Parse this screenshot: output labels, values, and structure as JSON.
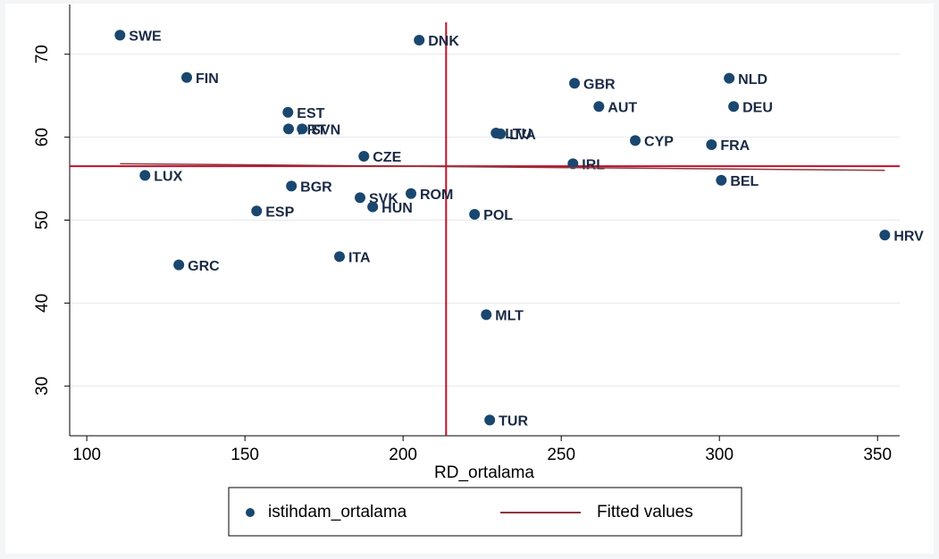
{
  "chart_data": {
    "type": "scatter",
    "x_label": "RD_ortalama",
    "xlim": [
      94.6,
      357
    ],
    "ylim": [
      24,
      76
    ],
    "xticks": [
      100,
      150,
      200,
      250,
      300,
      350
    ],
    "yticks": [
      30,
      40,
      50,
      60,
      70
    ],
    "grid": true,
    "xline": 213.6,
    "yline": 56.5,
    "refline_color": "#c0102a",
    "series": [
      {
        "name": "istihdam_ortalama",
        "color": "#1a476f",
        "labels": [
          "SWE",
          "DNK",
          "FIN",
          "GBR",
          "NLD",
          "AUT",
          "DEU",
          "EST",
          "PRT",
          "SVN",
          "LTU",
          "LVA",
          "CYP",
          "FRA",
          "CZE",
          "IRL",
          "LUX",
          "BEL",
          "BGR",
          "SVK",
          "ROM",
          "HUN",
          "ESP",
          "POL",
          "HRV",
          "GRC",
          "ITA",
          "MLT",
          "TUR"
        ],
        "x": [
          110.5,
          205.1,
          131.6,
          254.2,
          303.1,
          261.9,
          304.5,
          163.6,
          163.8,
          168.1,
          229.4,
          230.8,
          273.4,
          297.5,
          187.6,
          253.7,
          118.4,
          300.6,
          164.7,
          186.4,
          202.5,
          190.4,
          153.7,
          222.6,
          352.3,
          129.1,
          179.9,
          226.3,
          227.4
        ],
        "values": [
          72.3,
          71.7,
          67.2,
          66.5,
          67.1,
          63.7,
          63.7,
          63.0,
          61.0,
          61.0,
          60.5,
          60.4,
          59.6,
          59.1,
          57.7,
          56.8,
          55.4,
          54.8,
          54.1,
          52.7,
          53.2,
          51.6,
          51.1,
          50.7,
          48.2,
          44.6,
          45.6,
          38.6,
          25.9
        ]
      },
      {
        "name": "Fitted values",
        "color": "#90353b",
        "x": [
          110.5,
          352.3
        ],
        "values": [
          56.8,
          56.0
        ]
      }
    ],
    "legend": "bottom"
  }
}
